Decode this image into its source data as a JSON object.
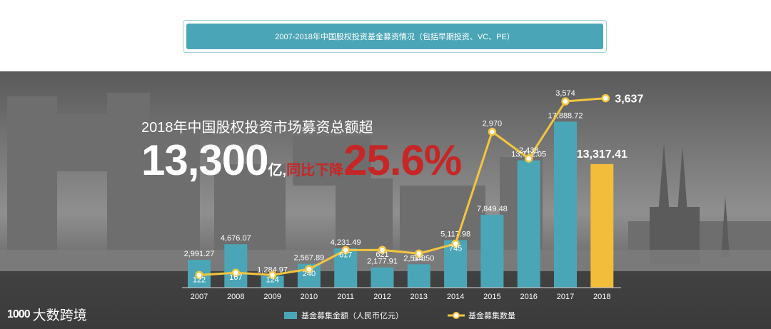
{
  "header": {
    "title": "2007-2018年中国股权投资基金募资情况（包括早期投资、VC、PE）",
    "corner_text": "······· ·········"
  },
  "headline": {
    "line1": "2018年中国股权投资市场募资总额超",
    "big_number": "13,300",
    "unit": "亿,",
    "decline_label": "同比下降",
    "decline_pct": "25.6%"
  },
  "logo": {
    "mark": "1000",
    "text": "大数跨境"
  },
  "colors": {
    "bar": "#4aa6b6",
    "bar_highlight": "#f2bd3b",
    "line": "#f3c53f",
    "decline": "#c62626"
  },
  "chart_data": {
    "type": "bar",
    "categories": [
      "2007",
      "2008",
      "2009",
      "2010",
      "2011",
      "2012",
      "2013",
      "2014",
      "2015",
      "2016",
      "2017",
      "2018"
    ],
    "series": [
      {
        "name": "基金募集金额（人民币亿元）",
        "type": "bar",
        "values": [
          2991.27,
          4676.07,
          1284.97,
          2567.89,
          4231.49,
          2177.91,
          2514.5,
          5117.98,
          7849.48,
          13712.05,
          17888.72,
          13317.41
        ],
        "labels": [
          "2,991.27",
          "4,676.07",
          "1,284.97",
          "2,567.89",
          "4,231.49",
          "2,177.91",
          "2,514.50",
          "5,117.98",
          "7,849.48",
          "13,712.05",
          "17,888.72",
          "13,317.41"
        ]
      },
      {
        "name": "基金募集数量",
        "type": "line",
        "values": [
          122,
          167,
          124,
          240,
          617,
          621,
          548,
          745,
          2970,
          2438,
          3574,
          3637
        ],
        "labels": [
          "122",
          "167",
          "124",
          "240",
          "617",
          "621",
          "548",
          "745",
          "2,970",
          "2,438",
          "3,574",
          "3,637"
        ]
      }
    ],
    "legend": [
      "基金募集金额（人民币亿元）",
      "基金募集数量"
    ],
    "legend_position": "bottom",
    "highlight_category": "2018",
    "bar_ylim": [
      0,
      20000
    ],
    "line_ylim": [
      0,
      4000
    ],
    "grid": false
  }
}
